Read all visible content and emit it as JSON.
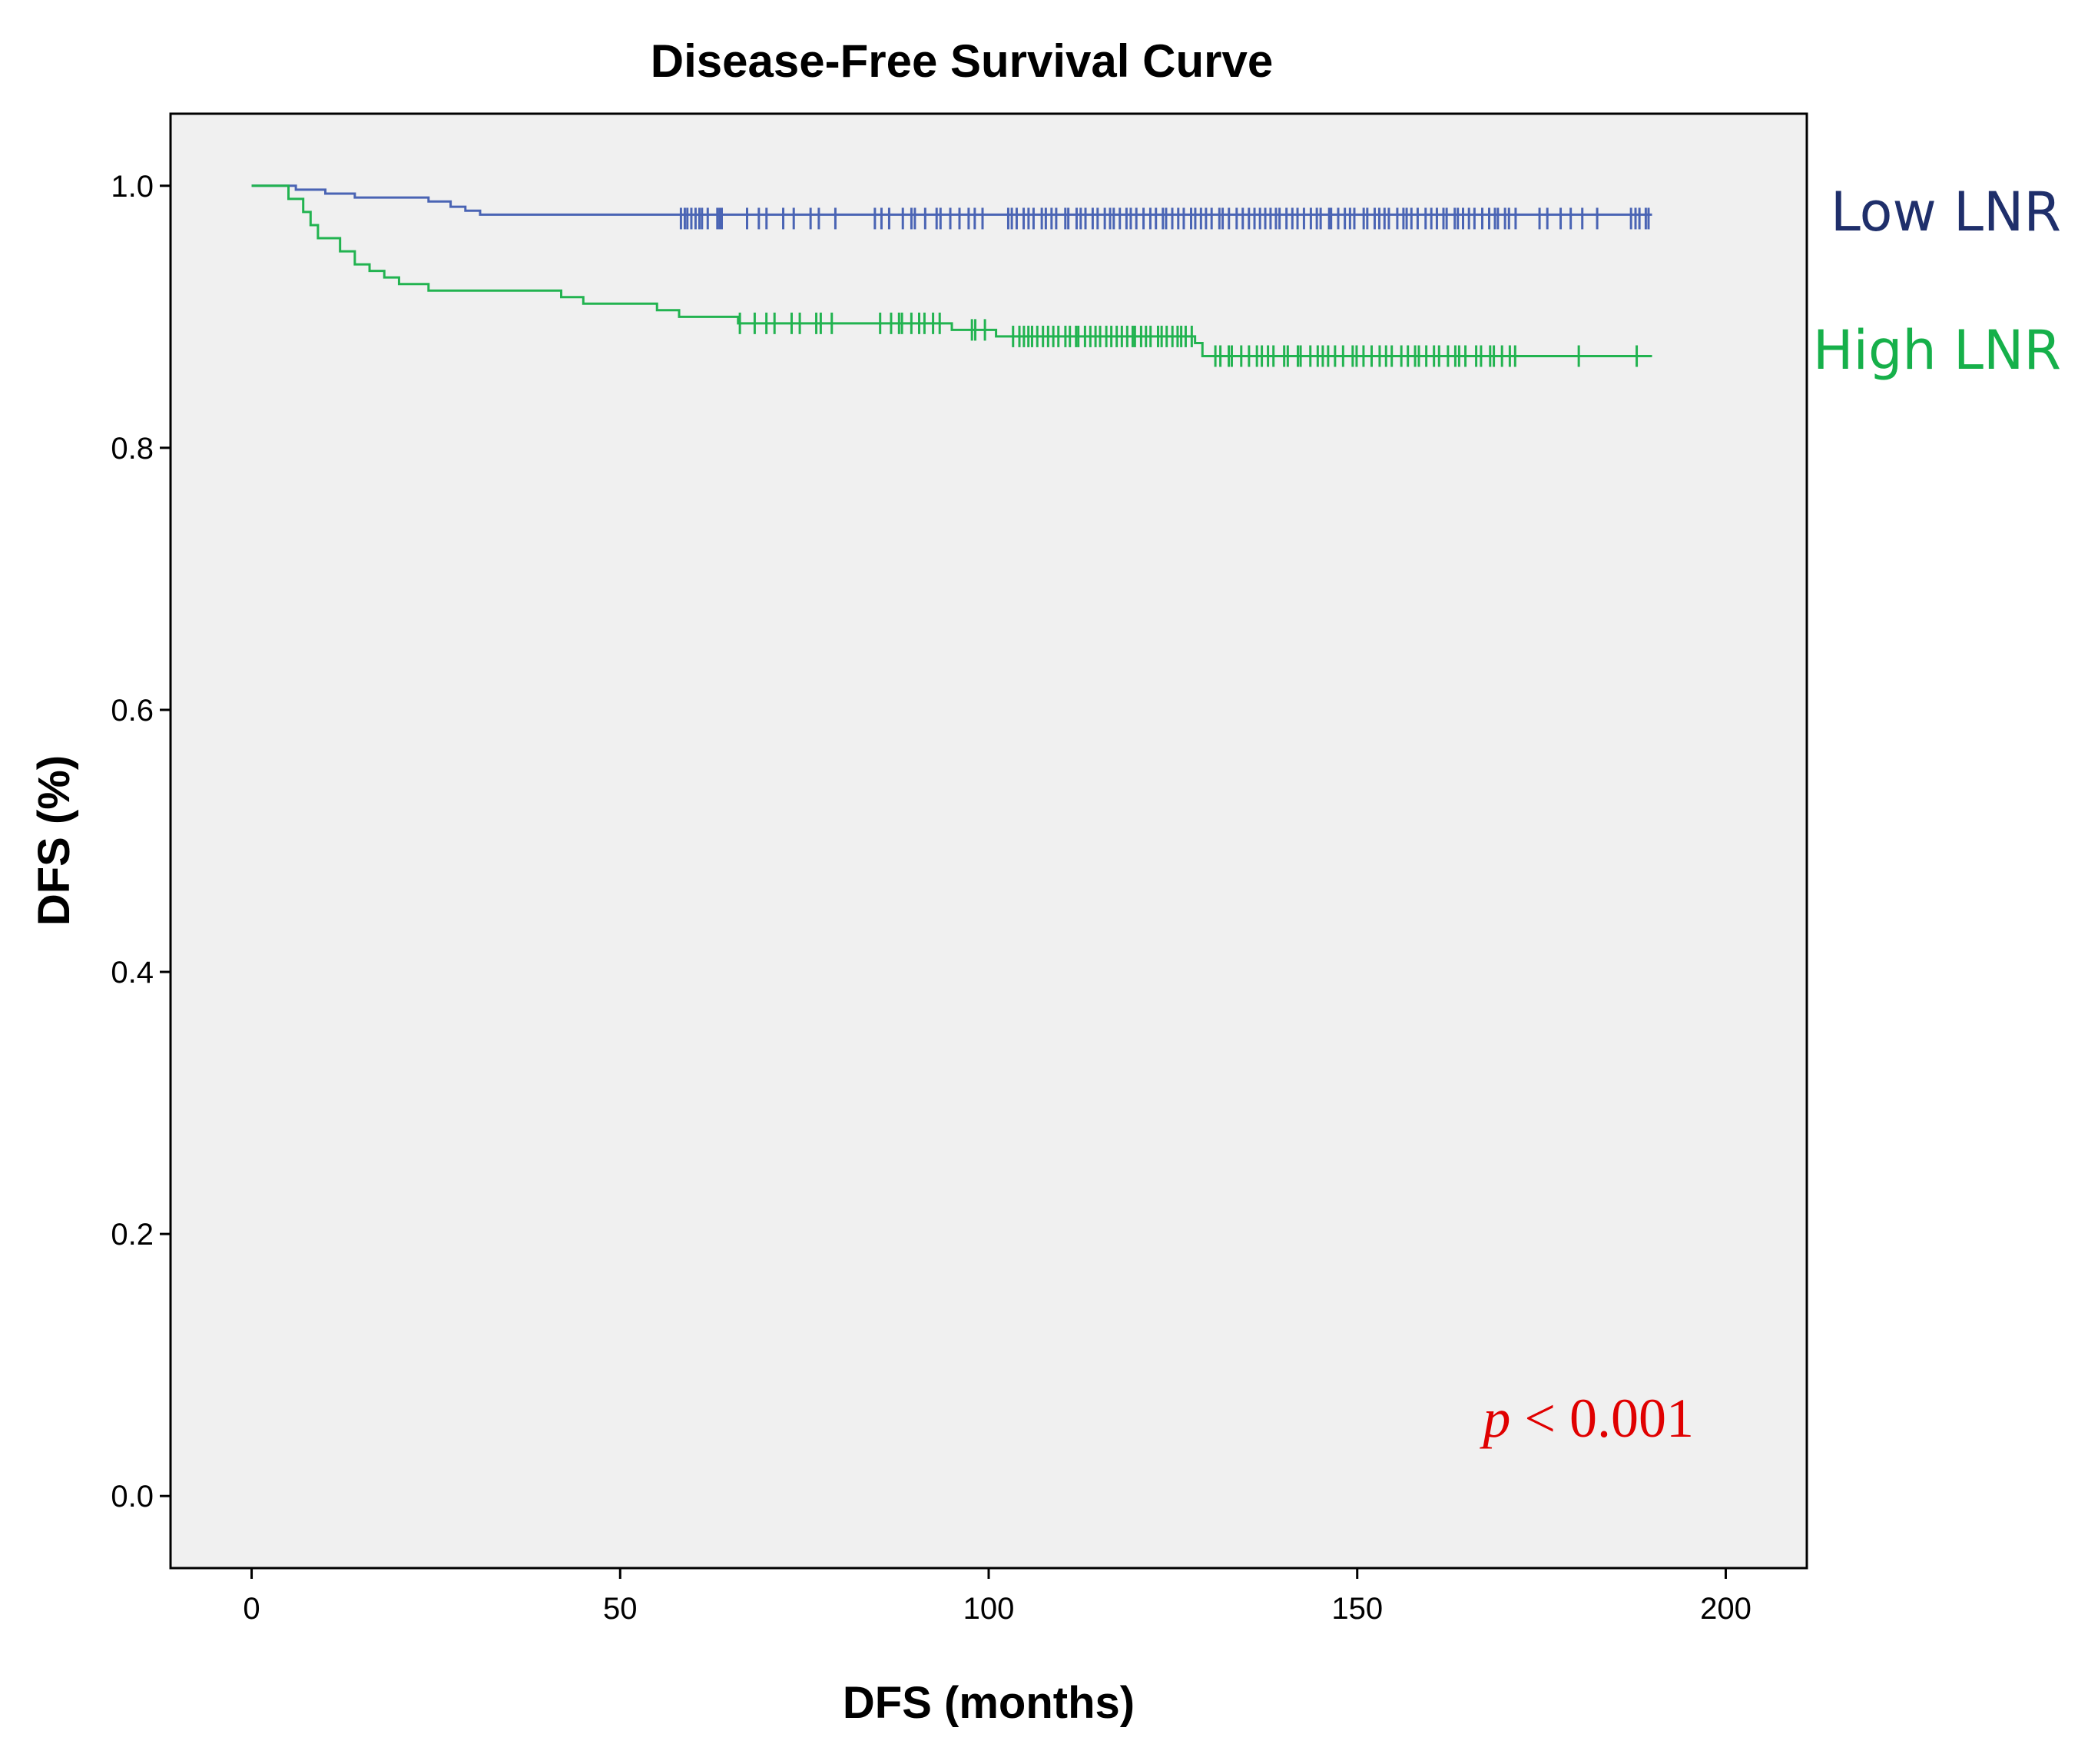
{
  "chart_data": {
    "type": "line",
    "title": "Disease-Free Survival Curve",
    "xlabel": "DFS (months)",
    "ylabel": "DFS (%)",
    "xlim": [
      -11,
      211
    ],
    "ylim": [
      -0.055,
      1.055
    ],
    "xticks": [
      0,
      50,
      100,
      150,
      200
    ],
    "xtick_labels": [
      "0",
      "50",
      "100",
      "150",
      "200"
    ],
    "yticks": [
      0.0,
      0.2,
      0.4,
      0.6,
      0.8,
      1.0
    ],
    "ytick_labels": [
      "0.0",
      "0.2",
      "0.4",
      "0.6",
      "0.8",
      "1.0"
    ],
    "grid": false,
    "background_color": "#f0f0f0",
    "annotation": {
      "italic": "p",
      "text": " < 0.001",
      "color": "#e00000"
    },
    "series": [
      {
        "name": "Low LNR",
        "color": "#4a64b4",
        "label_color": "#1f2f6b",
        "steps": [
          [
            0,
            1.0
          ],
          [
            6,
            0.997
          ],
          [
            10,
            0.994
          ],
          [
            14,
            0.991
          ],
          [
            24,
            0.988
          ],
          [
            27,
            0.984
          ],
          [
            29,
            0.981
          ],
          [
            31,
            0.978
          ],
          [
            190,
            0.978
          ]
        ],
        "censor_ranges": [
          [
            58,
            62,
            8
          ],
          [
            63,
            64,
            3
          ],
          [
            66,
            80,
            8
          ],
          [
            84,
            100,
            14
          ],
          [
            102,
            172,
            90
          ],
          [
            174,
            183,
            6
          ],
          [
            187,
            190,
            5
          ]
        ],
        "censor_y": 0.975
      },
      {
        "name": "High LNR",
        "color": "#22b350",
        "label_color": "#16b04a",
        "steps": [
          [
            0,
            1.0
          ],
          [
            5,
            0.99
          ],
          [
            7,
            0.98
          ],
          [
            8,
            0.97
          ],
          [
            9,
            0.96
          ],
          [
            12,
            0.95
          ],
          [
            14,
            0.94
          ],
          [
            16,
            0.935
          ],
          [
            18,
            0.93
          ],
          [
            20,
            0.925
          ],
          [
            24,
            0.92
          ],
          [
            42,
            0.915
          ],
          [
            45,
            0.91
          ],
          [
            55,
            0.905
          ],
          [
            58,
            0.9
          ],
          [
            66,
            0.895
          ],
          [
            95,
            0.89
          ],
          [
            101,
            0.885
          ],
          [
            128,
            0.88
          ],
          [
            129,
            0.87
          ],
          [
            190,
            0.87
          ]
        ],
        "censor_ranges": [
          [
            66,
            80,
            9
          ],
          [
            85,
            94,
            9
          ],
          [
            97,
            100,
            3
          ],
          [
            103,
            128,
            36
          ],
          [
            130,
            172,
            45
          ],
          [
            175,
            190,
            2
          ]
        ],
        "censor_y": null
      }
    ]
  }
}
